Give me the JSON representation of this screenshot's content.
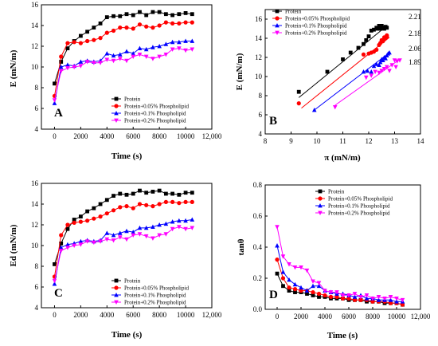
{
  "colors": {
    "protein": "#000000",
    "p005": "#ff0000",
    "p01": "#0000ff",
    "p02": "#ff00ff"
  },
  "legend_labels": [
    "Protein",
    "Protein+0.05% Phospholipid",
    "Protein+0.1% Phospholipid",
    "Protein+0.2% Phospholipid"
  ],
  "chart_data": [
    {
      "panel": "A",
      "type": "line",
      "xlabel": "Time (s)",
      "ylabel": "E (mN/m)",
      "xlim": [
        -1000,
        12000
      ],
      "ylim": [
        4,
        16
      ],
      "xticks": [
        0,
        2000,
        4000,
        6000,
        8000,
        10000,
        12000
      ],
      "xtick_labels": [
        "0",
        "2000",
        "4000",
        "6000",
        "8000",
        "10000",
        "12,000"
      ],
      "yticks": [
        4,
        6,
        8,
        10,
        12,
        14,
        16
      ],
      "legend": "bottom-right",
      "series": [
        {
          "name": "Protein",
          "color_key": "protein",
          "marker": "square",
          "x": [
            0,
            500,
            1000,
            1500,
            2000,
            2500,
            3000,
            3500,
            4000,
            4500,
            5000,
            5500,
            6000,
            6500,
            7000,
            7500,
            8000,
            8500,
            9000,
            9500,
            10000,
            10500
          ],
          "y": [
            8.4,
            10.5,
            11.8,
            12.5,
            13.0,
            13.4,
            13.8,
            14.2,
            14.8,
            14.9,
            14.9,
            15.1,
            15.0,
            15.3,
            15.0,
            15.3,
            15.3,
            15.1,
            15.0,
            15.1,
            15.2,
            15.1
          ]
        },
        {
          "name": "Protein+0.05% Phospholipid",
          "color_key": "p005",
          "marker": "circle",
          "x": [
            0,
            500,
            1000,
            1500,
            2000,
            2500,
            3000,
            3500,
            4000,
            4500,
            5000,
            5500,
            6000,
            6500,
            7000,
            7500,
            8000,
            8500,
            9000,
            9500,
            10000,
            10500
          ],
          "y": [
            7.2,
            11.0,
            12.3,
            12.4,
            12.3,
            12.5,
            12.6,
            12.8,
            13.3,
            13.5,
            13.8,
            13.8,
            13.7,
            14.1,
            13.9,
            13.8,
            14.0,
            14.3,
            14.2,
            14.2,
            14.3,
            14.3
          ]
        },
        {
          "name": "Protein+0.1% Phospholipid",
          "color_key": "p01",
          "marker": "triangle-up",
          "x": [
            0,
            500,
            1000,
            1500,
            2000,
            2500,
            3000,
            3500,
            4000,
            4500,
            5000,
            5500,
            6000,
            6500,
            7000,
            7500,
            8000,
            8500,
            9000,
            9500,
            10000,
            10500
          ],
          "y": [
            6.5,
            10.0,
            10.2,
            10.1,
            10.5,
            10.6,
            10.5,
            10.6,
            11.3,
            11.1,
            11.2,
            11.5,
            11.3,
            11.8,
            11.7,
            11.9,
            12.0,
            12.2,
            12.4,
            12.4,
            12.5,
            12.5
          ]
        },
        {
          "name": "Protein+0.2% Phospholipid",
          "color_key": "p02",
          "marker": "triangle-down",
          "x": [
            0,
            500,
            1000,
            1500,
            2000,
            2500,
            3000,
            3500,
            4000,
            4500,
            5000,
            5500,
            6000,
            6500,
            7000,
            7500,
            8000,
            8500,
            9000,
            9500,
            10000,
            10500
          ],
          "y": [
            6.8,
            9.6,
            9.9,
            10.0,
            10.1,
            10.5,
            10.4,
            10.4,
            10.7,
            10.6,
            10.8,
            10.6,
            11.0,
            11.2,
            11.0,
            10.8,
            11.0,
            11.2,
            11.7,
            11.8,
            11.6,
            11.7
          ]
        }
      ]
    },
    {
      "panel": "B",
      "type": "scatter",
      "xlabel": "π (mN/m)",
      "ylabel": "E (mN/m)",
      "xlim": [
        8,
        14
      ],
      "ylim": [
        4,
        17
      ],
      "xticks": [
        8,
        9,
        10,
        11,
        12,
        13,
        14
      ],
      "yticks": [
        4,
        6,
        8,
        10,
        12,
        14,
        16
      ],
      "legend": "top-left",
      "slope_labels": [
        "2.21",
        "2.18",
        "2.06",
        "1.89"
      ],
      "series": [
        {
          "name": "Protein",
          "color_key": "protein",
          "marker": "square",
          "x": [
            9.3,
            10.4,
            11.0,
            11.3,
            11.6,
            11.8,
            11.9,
            12.0,
            12.1,
            12.2,
            12.3,
            12.35,
            12.4,
            12.45,
            12.5,
            12.55,
            12.6,
            12.65,
            12.7
          ],
          "y": [
            8.4,
            10.5,
            11.8,
            12.5,
            13.0,
            13.4,
            13.8,
            14.2,
            14.8,
            14.9,
            15.1,
            15.0,
            15.3,
            15.0,
            15.3,
            15.1,
            15.0,
            15.2,
            15.1
          ],
          "fit": [
            [
              9.3,
              7.8
            ],
            [
              12.7,
              15.3
            ]
          ]
        },
        {
          "name": "Protein+0.05% Phospholipid",
          "color_key": "p005",
          "marker": "circle",
          "x": [
            9.3,
            11.8,
            12.0,
            12.1,
            12.2,
            12.3,
            12.4,
            12.45,
            12.5,
            12.55,
            12.6,
            12.6,
            12.65,
            12.7,
            12.7
          ],
          "y": [
            7.2,
            12.3,
            12.4,
            12.5,
            12.6,
            12.8,
            13.3,
            13.5,
            13.8,
            13.7,
            14.1,
            13.9,
            14.0,
            14.3,
            14.2
          ],
          "fit": [
            [
              9.4,
              6.7
            ],
            [
              12.8,
              14.1
            ]
          ]
        },
        {
          "name": "Protein+0.1% Phospholipid",
          "color_key": "p01",
          "marker": "triangle-up",
          "x": [
            9.9,
            11.8,
            11.95,
            12.1,
            12.2,
            12.3,
            12.4,
            12.45,
            12.5,
            12.55,
            12.6,
            12.65,
            12.7,
            12.75,
            12.8
          ],
          "y": [
            6.5,
            10.5,
            10.6,
            10.5,
            11.1,
            11.3,
            11.2,
            11.5,
            11.8,
            11.7,
            12.0,
            11.9,
            12.2,
            12.4,
            12.5
          ],
          "fit": [
            [
              9.9,
              6.5
            ],
            [
              12.8,
              12.5
            ]
          ]
        },
        {
          "name": "Protein+0.2% Phospholipid",
          "color_key": "p02",
          "marker": "triangle-down",
          "x": [
            10.7,
            11.9,
            12.1,
            12.25,
            12.4,
            12.5,
            12.6,
            12.7,
            12.8,
            12.9,
            13.0,
            13.05,
            13.1,
            13.2
          ],
          "y": [
            6.8,
            9.9,
            10.1,
            10.5,
            10.4,
            10.6,
            10.8,
            11.0,
            10.6,
            11.2,
            11.7,
            11.0,
            11.6,
            11.7
          ],
          "fit": [
            [
              10.7,
              7.0
            ],
            [
              13.2,
              11.8
            ]
          ]
        }
      ]
    },
    {
      "panel": "C",
      "type": "line",
      "xlabel": "Time (s)",
      "ylabel": "Ed (mN/m)",
      "xlim": [
        -1000,
        12000
      ],
      "ylim": [
        4,
        16
      ],
      "xticks": [
        0,
        2000,
        4000,
        6000,
        8000,
        10000,
        12000
      ],
      "xtick_labels": [
        "0",
        "2000",
        "4000",
        "6000",
        "8000",
        "10000",
        "12,000"
      ],
      "yticks": [
        4,
        6,
        8,
        10,
        12,
        14,
        16
      ],
      "legend": "bottom-right",
      "series": [
        {
          "name": "Protein",
          "color_key": "protein",
          "marker": "square",
          "x": [
            0,
            500,
            1000,
            1500,
            2000,
            2500,
            3000,
            3500,
            4000,
            4500,
            5000,
            5500,
            6000,
            6500,
            7000,
            7500,
            8000,
            8500,
            9000,
            9500,
            10000,
            10500
          ],
          "y": [
            8.2,
            10.2,
            11.6,
            12.5,
            12.8,
            13.3,
            13.6,
            14.0,
            14.4,
            14.8,
            15.0,
            14.9,
            15.0,
            15.3,
            15.1,
            15.2,
            15.3,
            15.0,
            15.0,
            14.9,
            15.1,
            15.1
          ]
        },
        {
          "name": "Protein+0.05% Phospholipid",
          "color_key": "p005",
          "marker": "circle",
          "x": [
            0,
            500,
            1000,
            1500,
            2000,
            2500,
            3000,
            3500,
            4000,
            4500,
            5000,
            5500,
            6000,
            6500,
            7000,
            7500,
            8000,
            8500,
            9000,
            9500,
            10000,
            10500
          ],
          "y": [
            7.0,
            11.0,
            12.0,
            12.2,
            12.3,
            12.4,
            12.6,
            12.8,
            13.1,
            13.4,
            13.7,
            13.8,
            13.6,
            14.0,
            13.9,
            13.8,
            14.0,
            14.2,
            14.2,
            14.1,
            14.2,
            14.2
          ]
        },
        {
          "name": "Protein+0.1% Phospholipid",
          "color_key": "p01",
          "marker": "triangle-up",
          "x": [
            0,
            500,
            1000,
            1500,
            2000,
            2500,
            3000,
            3500,
            4000,
            4500,
            5000,
            5500,
            6000,
            6500,
            7000,
            7500,
            8000,
            8500,
            9000,
            9500,
            10000,
            10500
          ],
          "y": [
            6.3,
            9.8,
            10.1,
            10.2,
            10.4,
            10.5,
            10.4,
            10.5,
            11.2,
            11.0,
            11.2,
            11.4,
            11.3,
            11.7,
            11.7,
            11.8,
            12.0,
            12.1,
            12.3,
            12.4,
            12.4,
            12.5
          ]
        },
        {
          "name": "Protein+0.2% Phospholipid",
          "color_key": "p02",
          "marker": "triangle-down",
          "x": [
            0,
            500,
            1000,
            1500,
            2000,
            2500,
            3000,
            3500,
            4000,
            4500,
            5000,
            5500,
            6000,
            6500,
            7000,
            7500,
            8000,
            8500,
            9000,
            9500,
            10000,
            10500
          ],
          "y": [
            6.6,
            9.5,
            9.8,
            10.0,
            10.1,
            10.4,
            10.3,
            10.4,
            10.6,
            10.5,
            10.8,
            10.6,
            11.0,
            11.1,
            10.9,
            10.7,
            11.0,
            11.1,
            11.6,
            11.8,
            11.6,
            11.7
          ]
        }
      ]
    },
    {
      "panel": "D",
      "type": "line",
      "xlabel": "Time (s)",
      "ylabel": "tanθ",
      "xlim": [
        -1000,
        12000
      ],
      "ylim": [
        0,
        0.8
      ],
      "xticks": [
        0,
        2000,
        4000,
        6000,
        8000,
        10000,
        12000
      ],
      "xtick_labels": [
        "0",
        "2000",
        "4000",
        "6000",
        "8000",
        "10000",
        "12,000"
      ],
      "yticks": [
        0.0,
        0.2,
        0.4,
        0.6,
        0.8
      ],
      "legend": "top-right",
      "series": [
        {
          "name": "Protein",
          "color_key": "protein",
          "marker": "square",
          "x": [
            0,
            500,
            1000,
            1500,
            2000,
            2500,
            3000,
            3500,
            4000,
            4500,
            5000,
            5500,
            6000,
            6500,
            7000,
            7500,
            8000,
            8500,
            9000,
            9500,
            10000,
            10500
          ],
          "y": [
            0.23,
            0.15,
            0.12,
            0.11,
            0.11,
            0.1,
            0.09,
            0.08,
            0.08,
            0.07,
            0.07,
            0.07,
            0.06,
            0.06,
            0.06,
            0.05,
            0.05,
            0.05,
            0.04,
            0.04,
            0.04,
            0.03
          ]
        },
        {
          "name": "Protein+0.05% Phospholipid",
          "color_key": "p005",
          "marker": "circle",
          "x": [
            0,
            500,
            1000,
            1500,
            2000,
            2500,
            3000,
            3500,
            4000,
            4500,
            5000,
            5500,
            6000,
            6500,
            7000,
            7500,
            8000,
            8500,
            9000,
            9500,
            10000,
            10500
          ],
          "y": [
            0.32,
            0.2,
            0.14,
            0.13,
            0.12,
            0.12,
            0.11,
            0.1,
            0.09,
            0.08,
            0.08,
            0.07,
            0.07,
            0.06,
            0.06,
            0.06,
            0.05,
            0.05,
            0.05,
            0.04,
            0.04,
            0.03
          ]
        },
        {
          "name": "Protein+0.1% Phospholipid",
          "color_key": "p01",
          "marker": "triangle-up",
          "x": [
            0,
            500,
            1000,
            1500,
            2000,
            2500,
            3000,
            3500,
            4000,
            4500,
            5000,
            5500,
            6000,
            6500,
            7000,
            7500,
            8000,
            8500,
            9000,
            9500,
            10000,
            10500
          ],
          "y": [
            0.41,
            0.24,
            0.19,
            0.16,
            0.14,
            0.12,
            0.15,
            0.15,
            0.12,
            0.11,
            0.1,
            0.1,
            0.09,
            0.08,
            0.09,
            0.07,
            0.07,
            0.06,
            0.06,
            0.06,
            0.05,
            0.05
          ]
        },
        {
          "name": "Protein+0.2% Phospholipid",
          "color_key": "p02",
          "marker": "triangle-down",
          "x": [
            0,
            500,
            1000,
            1500,
            2000,
            2500,
            3000,
            3500,
            4000,
            4500,
            5000,
            5500,
            6000,
            6500,
            7000,
            7500,
            8000,
            8500,
            9000,
            9500,
            10000,
            10500
          ],
          "y": [
            0.53,
            0.34,
            0.29,
            0.27,
            0.27,
            0.25,
            0.18,
            0.17,
            0.12,
            0.11,
            0.11,
            0.09,
            0.09,
            0.1,
            0.08,
            0.09,
            0.07,
            0.08,
            0.07,
            0.08,
            0.07,
            0.06
          ]
        }
      ]
    }
  ]
}
